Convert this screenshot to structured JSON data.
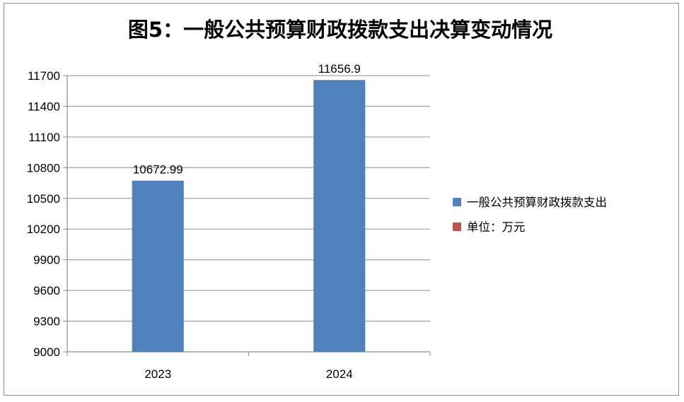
{
  "chart_data": {
    "type": "bar",
    "title": "图5：一般公共预算财政拨款支出决算变动情况",
    "categories": [
      "2023",
      "2024"
    ],
    "series": [
      {
        "name": "一般公共预算财政拨款支出",
        "values": [
          10672.99,
          11656.9
        ],
        "data_labels": [
          "10672.99",
          "11656.9"
        ]
      }
    ],
    "extra_legend": [
      {
        "name": "单位：万元"
      }
    ],
    "ylim": [
      9000,
      11700
    ],
    "yticks": [
      "9000",
      "9300",
      "9600",
      "9900",
      "10200",
      "10500",
      "10800",
      "11100",
      "11400",
      "11700"
    ],
    "grid": true,
    "legend_position": "right",
    "colors": {
      "series": "#4f81bd",
      "extra": "#c0504d",
      "grid": "#a6a6a6",
      "frame": "#8c8c8c"
    }
  }
}
